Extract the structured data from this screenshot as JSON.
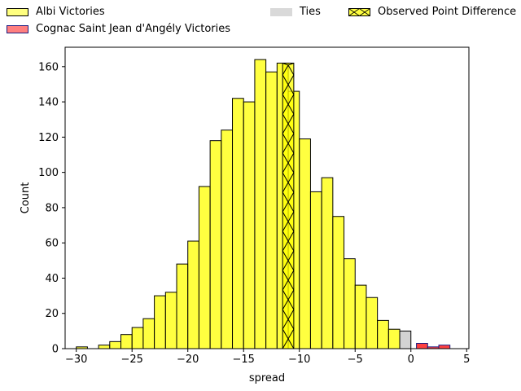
{
  "chart_data": {
    "type": "bar",
    "xlabel": "spread",
    "ylabel": "Count",
    "xlim": [
      -31,
      5.2
    ],
    "ylim": [
      0,
      171
    ],
    "x_ticks": [
      -30,
      -25,
      -20,
      -15,
      -10,
      -5,
      0,
      5
    ],
    "y_ticks": [
      0,
      20,
      40,
      60,
      80,
      100,
      120,
      140,
      160
    ],
    "bin_width": 1.0,
    "legend": {
      "placement": "top (above plot)",
      "entries": [
        {
          "key": "albi",
          "label": "Albi Victories",
          "color": "#ffff00"
        },
        {
          "key": "cognac",
          "label": "Cognac Saint Jean d'Angély Victories",
          "color": "#ff0000"
        },
        {
          "key": "ties",
          "label": "Ties",
          "color": "#d3d3d3"
        },
        {
          "key": "observed",
          "label": "Observed Point Difference",
          "color": "#ffff00"
        }
      ]
    },
    "series": [
      {
        "key": "albi",
        "bins": [
          {
            "x": -29.5,
            "count": 1
          },
          {
            "x": -27.5,
            "count": 2
          },
          {
            "x": -26.5,
            "count": 4
          },
          {
            "x": -25.5,
            "count": 8
          },
          {
            "x": -24.5,
            "count": 12
          },
          {
            "x": -23.5,
            "count": 17
          },
          {
            "x": -22.5,
            "count": 30
          },
          {
            "x": -21.5,
            "count": 32
          },
          {
            "x": -20.5,
            "count": 48
          },
          {
            "x": -19.5,
            "count": 61
          },
          {
            "x": -18.5,
            "count": 92
          },
          {
            "x": -17.5,
            "count": 118
          },
          {
            "x": -16.5,
            "count": 124
          },
          {
            "x": -15.5,
            "count": 142
          },
          {
            "x": -14.5,
            "count": 140
          },
          {
            "x": -13.5,
            "count": 164
          },
          {
            "x": -12.5,
            "count": 157
          },
          {
            "x": -11.5,
            "count": 162
          },
          {
            "x": -10.5,
            "count": 146
          },
          {
            "x": -9.5,
            "count": 119
          },
          {
            "x": -8.5,
            "count": 89
          },
          {
            "x": -7.5,
            "count": 97
          },
          {
            "x": -6.5,
            "count": 75
          },
          {
            "x": -5.5,
            "count": 51
          },
          {
            "x": -4.5,
            "count": 36
          },
          {
            "x": -3.5,
            "count": 29
          },
          {
            "x": -2.5,
            "count": 16
          },
          {
            "x": -1.5,
            "count": 11
          }
        ]
      },
      {
        "key": "ties",
        "bins": [
          {
            "x": -0.5,
            "count": 10
          }
        ]
      },
      {
        "key": "cognac",
        "bins": [
          {
            "x": 1.0,
            "count": 3
          },
          {
            "x": 2.0,
            "count": 1
          },
          {
            "x": 3.0,
            "count": 2
          }
        ]
      }
    ],
    "observed": {
      "x": -11.0,
      "count": 162
    }
  }
}
